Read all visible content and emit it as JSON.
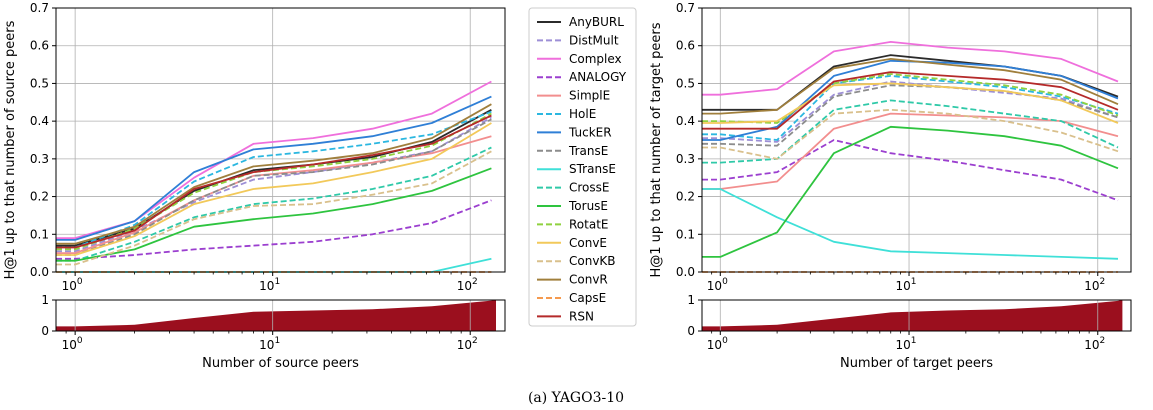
{
  "caption": "(a) YAGO3-10",
  "legend": [
    {
      "name": "AnyBURL",
      "color": "#2b2b2b",
      "dash": false
    },
    {
      "name": "DistMult",
      "color": "#9d8fd6",
      "dash": true
    },
    {
      "name": "Complex",
      "color": "#ef6fdc",
      "dash": false
    },
    {
      "name": "ANALOGY",
      "color": "#9b3fcf",
      "dash": true
    },
    {
      "name": "SimplE",
      "color": "#f28e8e",
      "dash": false
    },
    {
      "name": "HolE",
      "color": "#2bb7e0",
      "dash": true
    },
    {
      "name": "TuckER",
      "color": "#2f7fd6",
      "dash": false
    },
    {
      "name": "TransE",
      "color": "#8c8c8c",
      "dash": true
    },
    {
      "name": "STransE",
      "color": "#3fe0d8",
      "dash": false
    },
    {
      "name": "CrossE",
      "color": "#2fc9a8",
      "dash": true
    },
    {
      "name": "TorusE",
      "color": "#2ec43f",
      "dash": false
    },
    {
      "name": "RotatE",
      "color": "#8fd13f",
      "dash": true
    },
    {
      "name": "ConvE",
      "color": "#f2c95a",
      "dash": false
    },
    {
      "name": "ConvKB",
      "color": "#d9c08c",
      "dash": true
    },
    {
      "name": "ConvR",
      "color": "#a07f3c",
      "dash": false
    },
    {
      "name": "CapsE",
      "color": "#f59a4f",
      "dash": true
    },
    {
      "name": "RSN",
      "color": "#b52a2a",
      "dash": false
    }
  ],
  "chart_data": [
    {
      "type": "line",
      "xscale": "log",
      "xlabel": "",
      "ylabel": "H@1 up to that number of source peers",
      "xlim": [
        0.8,
        150
      ],
      "ylim": [
        0,
        0.7
      ],
      "yticks": [
        "0.0",
        "0.1",
        "0.2",
        "0.3",
        "0.4",
        "0.5",
        "0.6",
        "0.7"
      ],
      "xticks": [
        {
          "base": "10",
          "exp": "0"
        },
        {
          "base": "10",
          "exp": "1"
        },
        {
          "base": "10",
          "exp": "2"
        }
      ],
      "grid": true,
      "x": [
        0.8,
        1,
        2,
        4,
        8,
        16,
        32,
        64,
        128
      ],
      "series": [
        {
          "name": "AnyBURL",
          "values": [
            0.07,
            0.07,
            0.115,
            0.215,
            0.27,
            0.285,
            0.305,
            0.345,
            0.43
          ]
        },
        {
          "name": "DistMult",
          "values": [
            0.055,
            0.055,
            0.11,
            0.185,
            0.245,
            0.265,
            0.29,
            0.32,
            0.41
          ]
        },
        {
          "name": "Complex",
          "values": [
            0.09,
            0.09,
            0.135,
            0.25,
            0.34,
            0.355,
            0.38,
            0.42,
            0.505
          ]
        },
        {
          "name": "ANALOGY",
          "values": [
            0.035,
            0.035,
            0.045,
            0.06,
            0.07,
            0.08,
            0.1,
            0.13,
            0.19
          ]
        },
        {
          "name": "SimplE",
          "values": [
            0.05,
            0.05,
            0.105,
            0.19,
            0.255,
            0.27,
            0.29,
            0.315,
            0.36
          ]
        },
        {
          "name": "HolE",
          "values": [
            0.065,
            0.065,
            0.125,
            0.24,
            0.305,
            0.32,
            0.34,
            0.365,
            0.425
          ]
        },
        {
          "name": "TuckER",
          "values": [
            0.085,
            0.085,
            0.135,
            0.265,
            0.325,
            0.34,
            0.36,
            0.395,
            0.465
          ]
        },
        {
          "name": "TransE",
          "values": [
            0.045,
            0.045,
            0.1,
            0.19,
            0.255,
            0.265,
            0.285,
            0.32,
            0.405
          ]
        },
        {
          "name": "STransE",
          "values": [
            0.0,
            0.0,
            0.0,
            0.0,
            0.0,
            0.0,
            0.0,
            0.0,
            0.035
          ]
        },
        {
          "name": "CrossE",
          "values": [
            0.03,
            0.03,
            0.08,
            0.145,
            0.18,
            0.195,
            0.22,
            0.255,
            0.33
          ]
        },
        {
          "name": "TorusE",
          "values": [
            0.03,
            0.03,
            0.06,
            0.12,
            0.14,
            0.155,
            0.18,
            0.215,
            0.275
          ]
        },
        {
          "name": "RotatE",
          "values": [
            0.06,
            0.06,
            0.115,
            0.21,
            0.265,
            0.28,
            0.3,
            0.335,
            0.42
          ]
        },
        {
          "name": "ConvE",
          "values": [
            0.045,
            0.045,
            0.095,
            0.18,
            0.22,
            0.235,
            0.265,
            0.3,
            0.395
          ]
        },
        {
          "name": "ConvKB",
          "values": [
            0.02,
            0.02,
            0.07,
            0.14,
            0.175,
            0.18,
            0.205,
            0.235,
            0.32
          ]
        },
        {
          "name": "ConvR",
          "values": [
            0.075,
            0.075,
            0.12,
            0.225,
            0.28,
            0.295,
            0.315,
            0.355,
            0.445
          ]
        },
        {
          "name": "CapsE",
          "values": [
            0.0,
            0.0,
            0.0,
            0.0,
            0.0,
            0.0,
            0.0,
            0.0,
            0.0
          ]
        },
        {
          "name": "RSN",
          "values": [
            0.065,
            0.065,
            0.11,
            0.22,
            0.265,
            0.285,
            0.31,
            0.34,
            0.415
          ]
        }
      ]
    },
    {
      "type": "area",
      "xscale": "log",
      "xlabel": "Number of source peers",
      "ylabel": "",
      "xlim": [
        0.8,
        150
      ],
      "ylim": [
        0,
        1
      ],
      "yticks": [
        "0",
        "1"
      ],
      "xticks": [
        {
          "base": "10",
          "exp": "0"
        },
        {
          "base": "10",
          "exp": "1"
        },
        {
          "base": "10",
          "exp": "2"
        }
      ],
      "color": "#9b0f1e",
      "x": [
        0.8,
        1,
        2,
        4,
        8,
        16,
        32,
        64,
        128,
        135
      ],
      "values": [
        0.15,
        0.15,
        0.2,
        0.42,
        0.62,
        0.66,
        0.7,
        0.8,
        0.98,
        1.0
      ]
    },
    {
      "type": "line",
      "xscale": "log",
      "xlabel": "",
      "ylabel": "H@1 up to that number of target peers",
      "xlim": [
        0.8,
        150
      ],
      "ylim": [
        0,
        0.7
      ],
      "yticks": [
        "0.0",
        "0.1",
        "0.2",
        "0.3",
        "0.4",
        "0.5",
        "0.6",
        "0.7"
      ],
      "xticks": [
        {
          "base": "10",
          "exp": "0"
        },
        {
          "base": "10",
          "exp": "1"
        },
        {
          "base": "10",
          "exp": "2"
        }
      ],
      "grid": true,
      "x": [
        0.8,
        1,
        2,
        4,
        8,
        16,
        32,
        64,
        128
      ],
      "series": [
        {
          "name": "AnyBURL",
          "values": [
            0.43,
            0.43,
            0.43,
            0.545,
            0.575,
            0.56,
            0.545,
            0.52,
            0.465
          ]
        },
        {
          "name": "DistMult",
          "values": [
            0.355,
            0.355,
            0.345,
            0.47,
            0.505,
            0.49,
            0.475,
            0.46,
            0.41
          ]
        },
        {
          "name": "Complex",
          "values": [
            0.47,
            0.47,
            0.485,
            0.585,
            0.61,
            0.595,
            0.585,
            0.565,
            0.505
          ]
        },
        {
          "name": "ANALOGY",
          "values": [
            0.245,
            0.245,
            0.265,
            0.35,
            0.315,
            0.295,
            0.27,
            0.245,
            0.19
          ]
        },
        {
          "name": "SimplE",
          "values": [
            0.22,
            0.22,
            0.24,
            0.38,
            0.42,
            0.415,
            0.41,
            0.4,
            0.36
          ]
        },
        {
          "name": "HolE",
          "values": [
            0.365,
            0.365,
            0.35,
            0.5,
            0.52,
            0.505,
            0.49,
            0.465,
            0.42
          ]
        },
        {
          "name": "TuckER",
          "values": [
            0.35,
            0.35,
            0.385,
            0.52,
            0.56,
            0.555,
            0.545,
            0.52,
            0.46
          ]
        },
        {
          "name": "TransE",
          "values": [
            0.34,
            0.34,
            0.335,
            0.465,
            0.495,
            0.49,
            0.48,
            0.455,
            0.41
          ]
        },
        {
          "name": "STransE",
          "values": [
            0.22,
            0.22,
            0.145,
            0.08,
            0.055,
            0.05,
            0.045,
            0.04,
            0.035
          ]
        },
        {
          "name": "CrossE",
          "values": [
            0.29,
            0.29,
            0.3,
            0.43,
            0.455,
            0.44,
            0.42,
            0.4,
            0.33
          ]
        },
        {
          "name": "TorusE",
          "values": [
            0.04,
            0.04,
            0.105,
            0.315,
            0.385,
            0.375,
            0.36,
            0.335,
            0.275
          ]
        },
        {
          "name": "RotatE",
          "values": [
            0.4,
            0.4,
            0.395,
            0.5,
            0.525,
            0.51,
            0.495,
            0.47,
            0.415
          ]
        },
        {
          "name": "ConvE",
          "values": [
            0.395,
            0.395,
            0.4,
            0.495,
            0.5,
            0.49,
            0.48,
            0.455,
            0.395
          ]
        },
        {
          "name": "ConvKB",
          "values": [
            0.33,
            0.33,
            0.3,
            0.42,
            0.43,
            0.42,
            0.4,
            0.37,
            0.32
          ]
        },
        {
          "name": "ConvR",
          "values": [
            0.42,
            0.42,
            0.43,
            0.54,
            0.565,
            0.55,
            0.535,
            0.51,
            0.445
          ]
        },
        {
          "name": "CapsE",
          "values": [
            0.0,
            0.0,
            0.0,
            0.0,
            0.0,
            0.0,
            0.0,
            0.0,
            0.0
          ]
        },
        {
          "name": "RSN",
          "values": [
            0.38,
            0.38,
            0.38,
            0.505,
            0.53,
            0.52,
            0.51,
            0.49,
            0.43
          ]
        }
      ]
    },
    {
      "type": "area",
      "xscale": "log",
      "xlabel": "Number of target peers",
      "ylabel": "",
      "xlim": [
        0.8,
        150
      ],
      "ylim": [
        0,
        1
      ],
      "yticks": [
        "0",
        "1"
      ],
      "xticks": [
        {
          "base": "10",
          "exp": "0"
        },
        {
          "base": "10",
          "exp": "1"
        },
        {
          "base": "10",
          "exp": "2"
        }
      ],
      "color": "#9b0f1e",
      "x": [
        0.8,
        1,
        2,
        4,
        8,
        16,
        32,
        64,
        128,
        135
      ],
      "values": [
        0.15,
        0.15,
        0.2,
        0.4,
        0.6,
        0.66,
        0.7,
        0.8,
        0.97,
        1.0
      ]
    }
  ]
}
